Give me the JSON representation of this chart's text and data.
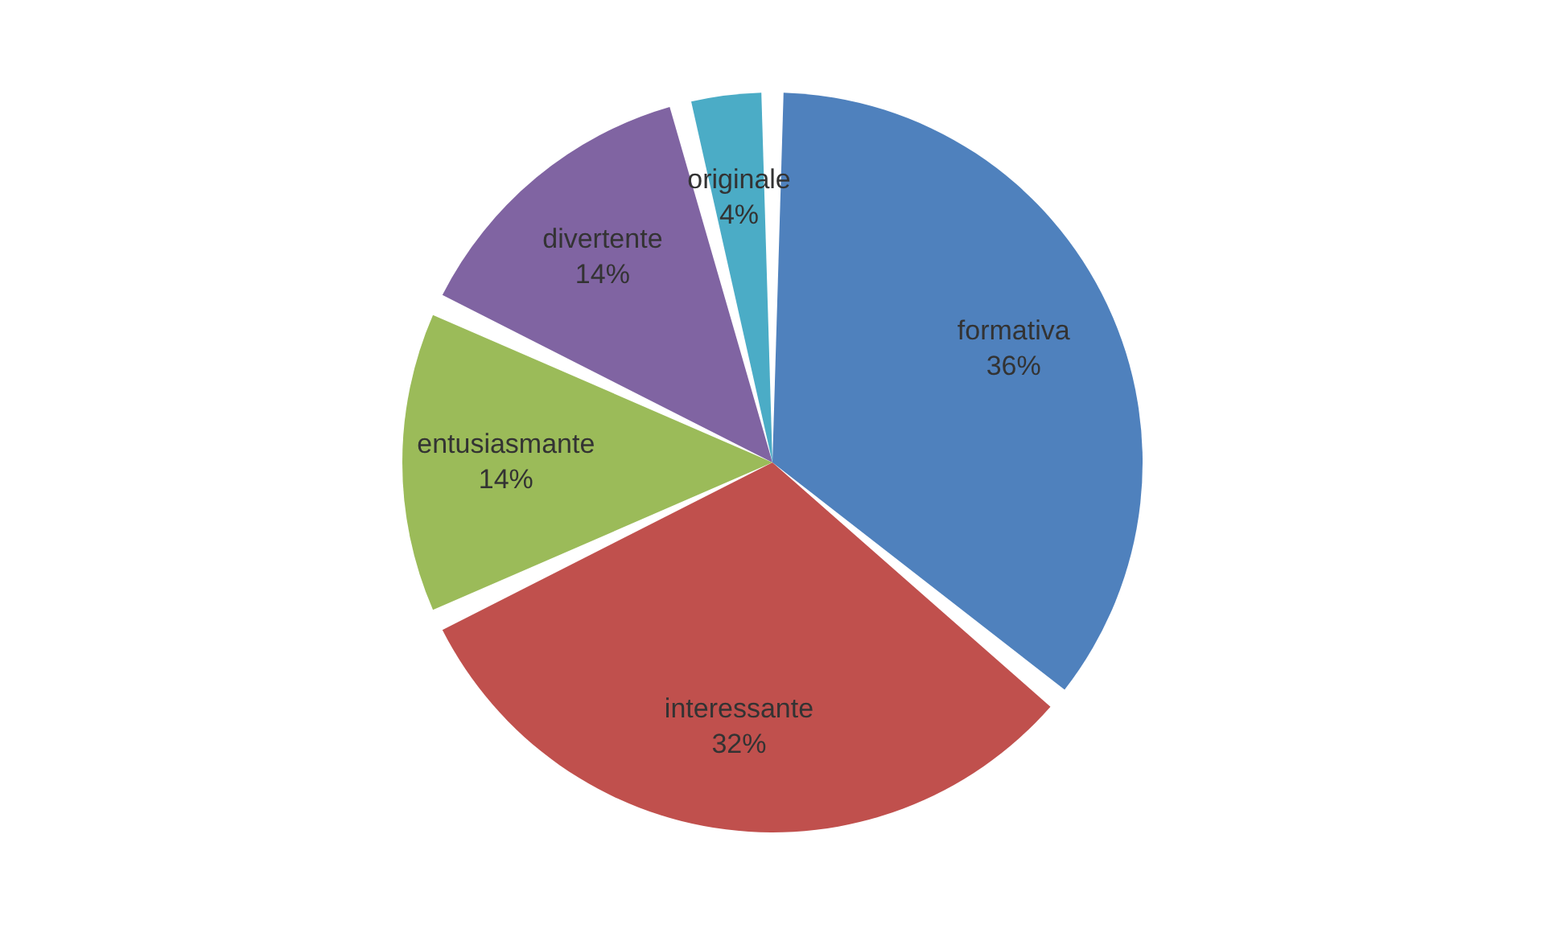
{
  "chart_data": {
    "type": "pie",
    "categories": [
      "formativa",
      "interessante",
      "entusiasmante",
      "divertente",
      "originale"
    ],
    "values": [
      36,
      32,
      14,
      14,
      4
    ],
    "value_labels": [
      "36%",
      "32%",
      "14%",
      "14%",
      "4%"
    ],
    "colors": [
      "#4f81bd",
      "#c0504d",
      "#9bbb59",
      "#8064a2",
      "#4bacc6"
    ],
    "legend": false
  }
}
